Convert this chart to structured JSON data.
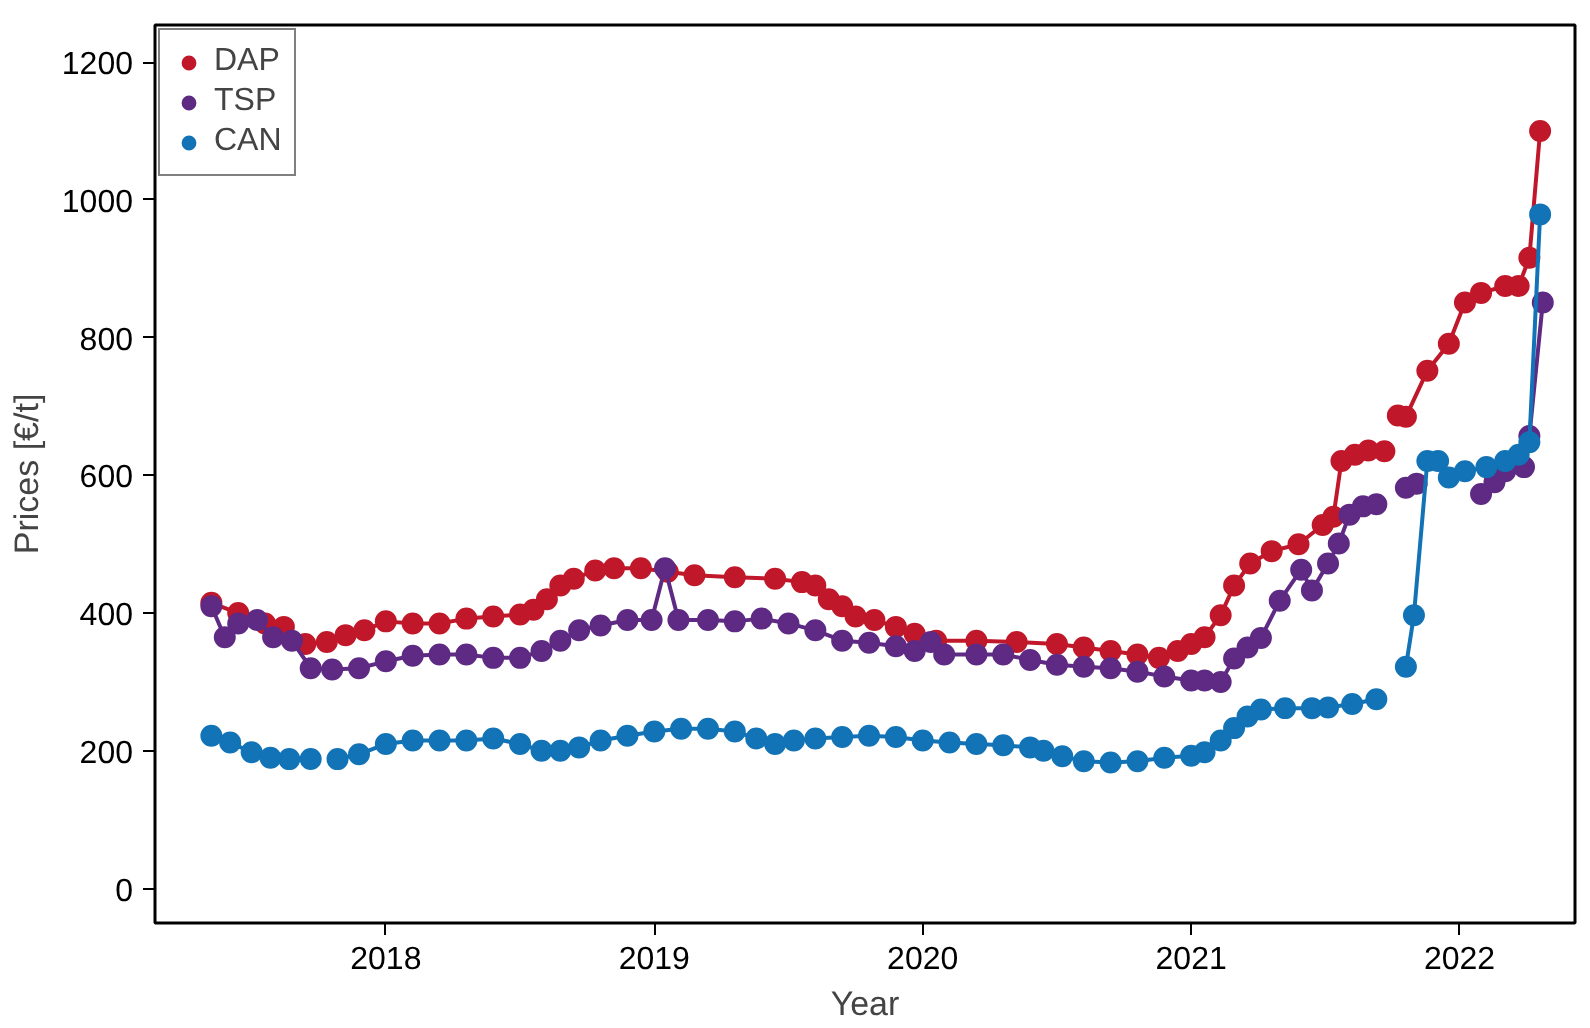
{
  "chart_data": {
    "type": "line",
    "xlabel": "Year",
    "ylabel": "Prices [€/t]",
    "xlim": [
      2017.14,
      2022.43
    ],
    "ylim": [
      -50,
      1254
    ],
    "xticks": [
      2018,
      2019,
      2020,
      2021,
      2022
    ],
    "yticks": [
      0,
      200,
      400,
      600,
      800,
      1000,
      1200
    ],
    "grid": false,
    "legend": "top left",
    "marker": "circle",
    "line_style": "solid",
    "series": [
      {
        "name": "DAP",
        "color": "#c0182a",
        "x": [
          2017.35,
          2017.45,
          2017.55,
          2017.62,
          2017.7,
          2017.78,
          2017.85,
          2017.92,
          2018.0,
          2018.1,
          2018.2,
          2018.3,
          2018.4,
          2018.5,
          2018.55,
          2018.6,
          2018.65,
          2018.7,
          2018.78,
          2018.85,
          2018.95,
          2019.05,
          2019.15,
          2019.3,
          2019.45,
          2019.55,
          2019.6,
          2019.65,
          2019.7,
          2019.75,
          2019.82,
          2019.9,
          2019.97,
          2020.05,
          2020.2,
          2020.35,
          2020.5,
          2020.6,
          2020.7,
          2020.8,
          2020.88,
          2020.95,
          2021.0,
          2021.05,
          2021.11,
          2021.16,
          2021.22,
          2021.3,
          2021.4,
          2021.49,
          2021.53,
          2021.56,
          2021.61,
          2021.66,
          2021.72,
          2021.74,
          2021.77,
          2021.8,
          2021.88,
          2021.96,
          2022.02,
          2022.08,
          2022.17,
          2022.22,
          2022.26,
          2022.3
        ],
        "values": [
          415,
          400,
          385,
          380,
          355,
          358,
          368,
          375,
          388,
          385,
          385,
          392,
          395,
          398,
          405,
          420,
          440,
          450,
          462,
          465,
          465,
          460,
          455,
          452,
          450,
          445,
          440,
          420,
          410,
          395,
          390,
          380,
          370,
          360,
          360,
          358,
          355,
          350,
          345,
          340,
          335,
          345,
          355,
          365,
          397,
          440,
          472,
          490,
          500,
          528,
          540,
          621,
          630,
          636,
          635,
          null,
          687,
          685,
          752,
          791,
          851,
          865,
          875,
          875,
          916,
          1100
        ]
      },
      {
        "name": "TSP",
        "color": "#5e2a84",
        "x": [
          2017.35,
          2017.4,
          2017.45,
          2017.52,
          2017.58,
          2017.65,
          2017.72,
          2017.8,
          2017.9,
          2018.0,
          2018.1,
          2018.2,
          2018.3,
          2018.4,
          2018.5,
          2018.58,
          2018.65,
          2018.72,
          2018.8,
          2018.9,
          2018.99,
          2019.04,
          2019.09,
          2019.2,
          2019.3,
          2019.4,
          2019.5,
          2019.6,
          2019.7,
          2019.8,
          2019.9,
          2019.97,
          2020.03,
          2020.08,
          2020.2,
          2020.3,
          2020.4,
          2020.5,
          2020.6,
          2020.7,
          2020.8,
          2020.9,
          2021.0,
          2021.05,
          2021.11,
          2021.16,
          2021.21,
          2021.26,
          2021.33,
          2021.41,
          2021.45,
          2021.51,
          2021.55,
          2021.59,
          2021.64,
          2021.69,
          2021.74,
          2021.8,
          2021.84,
          2021.96,
          2022.08,
          2022.13,
          2022.17,
          2022.24,
          2022.26,
          2022.31
        ],
        "values": [
          410,
          365,
          385,
          390,
          365,
          360,
          320,
          318,
          320,
          330,
          338,
          340,
          340,
          335,
          335,
          345,
          360,
          375,
          382,
          390,
          390,
          465,
          390,
          390,
          388,
          392,
          385,
          375,
          360,
          357,
          352,
          345,
          358,
          340,
          340,
          340,
          332,
          325,
          322,
          320,
          315,
          308,
          302,
          302,
          300,
          334,
          350,
          364,
          418,
          463,
          433,
          472,
          501,
          543,
          555,
          558,
          null,
          582,
          588,
          null,
          573,
          590,
          606,
          612,
          657,
          851
        ]
      },
      {
        "name": "CAN",
        "color": "#1273b6",
        "x": [
          2017.35,
          2017.42,
          2017.5,
          2017.57,
          2017.64,
          2017.72,
          2017.77,
          2017.82,
          2017.9,
          2018.0,
          2018.1,
          2018.2,
          2018.3,
          2018.4,
          2018.5,
          2018.58,
          2018.65,
          2018.72,
          2018.8,
          2018.9,
          2019.0,
          2019.1,
          2019.2,
          2019.3,
          2019.38,
          2019.45,
          2019.52,
          2019.6,
          2019.7,
          2019.8,
          2019.9,
          2020.0,
          2020.1,
          2020.2,
          2020.3,
          2020.4,
          2020.45,
          2020.52,
          2020.6,
          2020.7,
          2020.8,
          2020.9,
          2021.0,
          2021.05,
          2021.11,
          2021.16,
          2021.21,
          2021.26,
          2021.35,
          2021.45,
          2021.51,
          2021.6,
          2021.69,
          2021.74,
          2021.8,
          2021.83,
          2021.88,
          2021.92,
          2021.96,
          2022.02,
          2022.1,
          2022.17,
          2022.22,
          2022.26,
          2022.3
        ],
        "values": [
          222,
          212,
          198,
          190,
          188,
          188,
          null,
          188,
          195,
          210,
          215,
          215,
          215,
          218,
          210,
          200,
          200,
          205,
          215,
          222,
          228,
          232,
          232,
          228,
          218,
          210,
          215,
          218,
          220,
          222,
          220,
          215,
          212,
          210,
          208,
          205,
          200,
          192,
          185,
          183,
          185,
          190,
          193,
          198,
          215,
          233,
          250,
          260,
          262,
          262,
          263,
          268,
          275,
          null,
          322,
          397,
          621,
          621,
          597,
          606,
          612,
          621,
          630,
          648,
          979
        ]
      }
    ]
  }
}
